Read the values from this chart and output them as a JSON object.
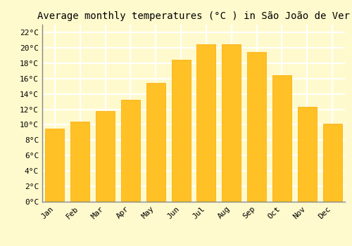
{
  "title": "Average monthly temperatures (°C ) in São João de Ver",
  "months": [
    "Jan",
    "Feb",
    "Mar",
    "Apr",
    "May",
    "Jun",
    "Jul",
    "Aug",
    "Sep",
    "Oct",
    "Nov",
    "Dec"
  ],
  "values": [
    9.5,
    10.4,
    11.8,
    13.2,
    15.4,
    18.4,
    20.4,
    20.4,
    19.4,
    16.4,
    12.3,
    10.1
  ],
  "bar_color": "#FFC125",
  "bar_edge_color": "#FFA500",
  "background_color": "#FFFACD",
  "grid_color": "#FFFFFF",
  "ytick_labels": [
    "0°C",
    "2°C",
    "4°C",
    "6°C",
    "8°C",
    "10°C",
    "12°C",
    "14°C",
    "16°C",
    "18°C",
    "20°C",
    "22°C"
  ],
  "ytick_values": [
    0,
    2,
    4,
    6,
    8,
    10,
    12,
    14,
    16,
    18,
    20,
    22
  ],
  "ylim": [
    0,
    23
  ],
  "title_fontsize": 10,
  "tick_fontsize": 8,
  "font_family": "monospace"
}
